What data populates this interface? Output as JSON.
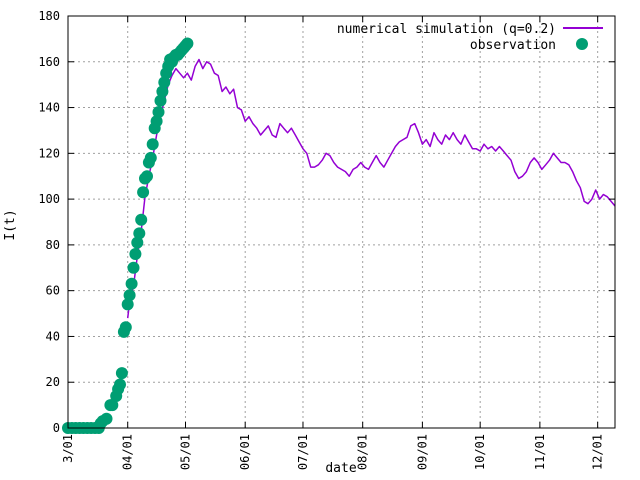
{
  "chart_data": {
    "type": "line",
    "xlabel": "date",
    "ylabel": "I(t)",
    "x_axis": "date",
    "xlim": [
      "2020-03-01",
      "2020-12-10"
    ],
    "ylim": [
      0,
      180
    ],
    "grid": true,
    "legend_position": "top-right",
    "yticks": [
      0,
      20,
      40,
      60,
      80,
      100,
      120,
      140,
      160,
      180
    ],
    "xticks": [
      {
        "label": "3/01",
        "date": "2020-03-01"
      },
      {
        "label": "04/01",
        "date": "2020-04-01"
      },
      {
        "label": "05/01",
        "date": "2020-05-01"
      },
      {
        "label": "06/01",
        "date": "2020-06-01"
      },
      {
        "label": "07/01",
        "date": "2020-07-01"
      },
      {
        "label": "08/01",
        "date": "2020-08-01"
      },
      {
        "label": "09/01",
        "date": "2020-09-01"
      },
      {
        "label": "10/01",
        "date": "2020-10-01"
      },
      {
        "label": "11/01",
        "date": "2020-11-01"
      },
      {
        "label": "12/01",
        "date": "2020-12-01"
      }
    ],
    "series": [
      {
        "name": "numerical simulation (q=0.2)",
        "style": "line",
        "color": "#9400d3",
        "points": [
          [
            "2020-04-01",
            48
          ],
          [
            "2020-04-02",
            55
          ],
          [
            "2020-04-04",
            62
          ],
          [
            "2020-04-06",
            75
          ],
          [
            "2020-04-08",
            86
          ],
          [
            "2020-04-10",
            101
          ],
          [
            "2020-04-12",
            110
          ],
          [
            "2020-04-14",
            118
          ],
          [
            "2020-04-16",
            128
          ],
          [
            "2020-04-18",
            136
          ],
          [
            "2020-04-20",
            143
          ],
          [
            "2020-04-22",
            150
          ],
          [
            "2020-04-24",
            154
          ],
          [
            "2020-04-26",
            157
          ],
          [
            "2020-04-28",
            155
          ],
          [
            "2020-04-30",
            153
          ],
          [
            "2020-05-02",
            155
          ],
          [
            "2020-05-04",
            152
          ],
          [
            "2020-05-06",
            158
          ],
          [
            "2020-05-08",
            161
          ],
          [
            "2020-05-10",
            157
          ],
          [
            "2020-05-12",
            160
          ],
          [
            "2020-05-14",
            159
          ],
          [
            "2020-05-16",
            155
          ],
          [
            "2020-05-18",
            154
          ],
          [
            "2020-05-20",
            147
          ],
          [
            "2020-05-22",
            149
          ],
          [
            "2020-05-24",
            146
          ],
          [
            "2020-05-26",
            148
          ],
          [
            "2020-05-28",
            140
          ],
          [
            "2020-05-30",
            139
          ],
          [
            "2020-06-01",
            134
          ],
          [
            "2020-06-03",
            136
          ],
          [
            "2020-06-05",
            133
          ],
          [
            "2020-06-07",
            131
          ],
          [
            "2020-06-09",
            128
          ],
          [
            "2020-06-11",
            130
          ],
          [
            "2020-06-13",
            132
          ],
          [
            "2020-06-15",
            128
          ],
          [
            "2020-06-17",
            127
          ],
          [
            "2020-06-19",
            133
          ],
          [
            "2020-06-21",
            131
          ],
          [
            "2020-06-23",
            129
          ],
          [
            "2020-06-25",
            131
          ],
          [
            "2020-06-27",
            128
          ],
          [
            "2020-06-29",
            125
          ],
          [
            "2020-07-01",
            122
          ],
          [
            "2020-07-03",
            120
          ],
          [
            "2020-07-05",
            114
          ],
          [
            "2020-07-07",
            114
          ],
          [
            "2020-07-09",
            115
          ],
          [
            "2020-07-11",
            117
          ],
          [
            "2020-07-13",
            120
          ],
          [
            "2020-07-15",
            119
          ],
          [
            "2020-07-17",
            116
          ],
          [
            "2020-07-19",
            114
          ],
          [
            "2020-07-21",
            113
          ],
          [
            "2020-07-23",
            112
          ],
          [
            "2020-07-25",
            110
          ],
          [
            "2020-07-27",
            113
          ],
          [
            "2020-07-29",
            114
          ],
          [
            "2020-07-31",
            116
          ],
          [
            "2020-08-02",
            114
          ],
          [
            "2020-08-04",
            113
          ],
          [
            "2020-08-06",
            116
          ],
          [
            "2020-08-08",
            119
          ],
          [
            "2020-08-10",
            116
          ],
          [
            "2020-08-12",
            114
          ],
          [
            "2020-08-14",
            117
          ],
          [
            "2020-08-16",
            120
          ],
          [
            "2020-08-18",
            123
          ],
          [
            "2020-08-20",
            125
          ],
          [
            "2020-08-22",
            126
          ],
          [
            "2020-08-24",
            127
          ],
          [
            "2020-08-26",
            132
          ],
          [
            "2020-08-28",
            133
          ],
          [
            "2020-08-30",
            129
          ],
          [
            "2020-09-01",
            124
          ],
          [
            "2020-09-03",
            126
          ],
          [
            "2020-09-05",
            123
          ],
          [
            "2020-09-07",
            129
          ],
          [
            "2020-09-09",
            126
          ],
          [
            "2020-09-11",
            124
          ],
          [
            "2020-09-13",
            128
          ],
          [
            "2020-09-15",
            126
          ],
          [
            "2020-09-17",
            129
          ],
          [
            "2020-09-19",
            126
          ],
          [
            "2020-09-21",
            124
          ],
          [
            "2020-09-23",
            128
          ],
          [
            "2020-09-25",
            125
          ],
          [
            "2020-09-27",
            122
          ],
          [
            "2020-09-29",
            122
          ],
          [
            "2020-10-01",
            121
          ],
          [
            "2020-10-03",
            124
          ],
          [
            "2020-10-05",
            122
          ],
          [
            "2020-10-07",
            123
          ],
          [
            "2020-10-09",
            121
          ],
          [
            "2020-10-11",
            123
          ],
          [
            "2020-10-13",
            121
          ],
          [
            "2020-10-15",
            119
          ],
          [
            "2020-10-17",
            117
          ],
          [
            "2020-10-19",
            112
          ],
          [
            "2020-10-21",
            109
          ],
          [
            "2020-10-23",
            110
          ],
          [
            "2020-10-25",
            112
          ],
          [
            "2020-10-27",
            116
          ],
          [
            "2020-10-29",
            118
          ],
          [
            "2020-10-31",
            116
          ],
          [
            "2020-11-02",
            113
          ],
          [
            "2020-11-04",
            115
          ],
          [
            "2020-11-06",
            117
          ],
          [
            "2020-11-08",
            120
          ],
          [
            "2020-11-10",
            118
          ],
          [
            "2020-11-12",
            116
          ],
          [
            "2020-11-14",
            116
          ],
          [
            "2020-11-16",
            115
          ],
          [
            "2020-11-18",
            112
          ],
          [
            "2020-11-20",
            108
          ],
          [
            "2020-11-22",
            105
          ],
          [
            "2020-11-24",
            99
          ],
          [
            "2020-11-26",
            98
          ],
          [
            "2020-11-28",
            100
          ],
          [
            "2020-11-30",
            104
          ],
          [
            "2020-12-02",
            100
          ],
          [
            "2020-12-04",
            102
          ],
          [
            "2020-12-06",
            101
          ],
          [
            "2020-12-08",
            99
          ],
          [
            "2020-12-10",
            97
          ]
        ]
      },
      {
        "name": "observation",
        "style": "points",
        "color": "#009e73",
        "points": [
          [
            "2020-03-01",
            0
          ],
          [
            "2020-03-03",
            0
          ],
          [
            "2020-03-05",
            0
          ],
          [
            "2020-03-07",
            0
          ],
          [
            "2020-03-09",
            0
          ],
          [
            "2020-03-11",
            0
          ],
          [
            "2020-03-13",
            0
          ],
          [
            "2020-03-15",
            0
          ],
          [
            "2020-03-17",
            0
          ],
          [
            "2020-03-18",
            2
          ],
          [
            "2020-03-19",
            3
          ],
          [
            "2020-03-21",
            4
          ],
          [
            "2020-03-23",
            10
          ],
          [
            "2020-03-24",
            10
          ],
          [
            "2020-03-26",
            14
          ],
          [
            "2020-03-27",
            17
          ],
          [
            "2020-03-28",
            19
          ],
          [
            "2020-03-29",
            24
          ],
          [
            "2020-03-30",
            42
          ],
          [
            "2020-03-31",
            44
          ],
          [
            "2020-04-01",
            54
          ],
          [
            "2020-04-02",
            58
          ],
          [
            "2020-04-03",
            63
          ],
          [
            "2020-04-04",
            70
          ],
          [
            "2020-04-05",
            76
          ],
          [
            "2020-04-06",
            81
          ],
          [
            "2020-04-07",
            85
          ],
          [
            "2020-04-08",
            91
          ],
          [
            "2020-04-09",
            103
          ],
          [
            "2020-04-10",
            109
          ],
          [
            "2020-04-11",
            110
          ],
          [
            "2020-04-12",
            116
          ],
          [
            "2020-04-13",
            118
          ],
          [
            "2020-04-14",
            124
          ],
          [
            "2020-04-15",
            131
          ],
          [
            "2020-04-16",
            134
          ],
          [
            "2020-04-17",
            138
          ],
          [
            "2020-04-18",
            143
          ],
          [
            "2020-04-19",
            147
          ],
          [
            "2020-04-20",
            151
          ],
          [
            "2020-04-21",
            155
          ],
          [
            "2020-04-22",
            158
          ],
          [
            "2020-04-23",
            161
          ],
          [
            "2020-04-24",
            160
          ],
          [
            "2020-04-25",
            162
          ],
          [
            "2020-04-26",
            163
          ],
          [
            "2020-04-27",
            163
          ],
          [
            "2020-04-28",
            164
          ],
          [
            "2020-04-29",
            165
          ],
          [
            "2020-04-30",
            166
          ],
          [
            "2020-05-01",
            167
          ],
          [
            "2020-05-02",
            168
          ]
        ]
      }
    ]
  }
}
